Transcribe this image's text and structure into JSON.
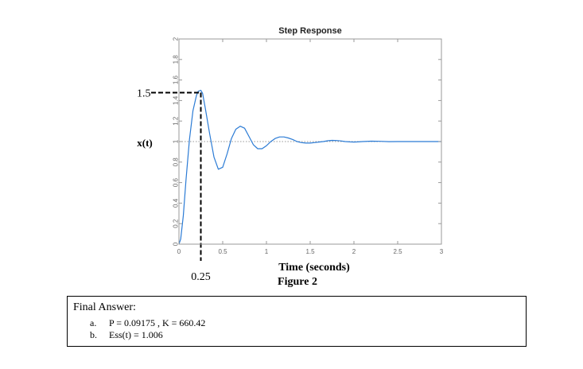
{
  "chart_data": {
    "type": "line",
    "title": "Step Response",
    "xlabel": "Time (seconds)",
    "ylabel": "x(t)",
    "caption": "Figure 2",
    "xlim": [
      0,
      3
    ],
    "ylim": [
      0,
      2
    ],
    "x_ticks": [
      "0",
      "0.5",
      "1",
      "1.5",
      "2",
      "2.5",
      "3"
    ],
    "y_ticks": [
      "0",
      "0.2",
      "0.4",
      "0.6",
      "0.8",
      "1",
      "1.2",
      "1.4",
      "1.6",
      "1.8",
      "2"
    ],
    "grid": false,
    "steady_state_reference": 1,
    "series": [
      {
        "color": "#2b7bd5",
        "x": [
          0,
          0.02,
          0.05,
          0.08,
          0.12,
          0.16,
          0.2,
          0.22,
          0.25,
          0.27,
          0.3,
          0.35,
          0.4,
          0.45,
          0.5,
          0.55,
          0.6,
          0.65,
          0.7,
          0.75,
          0.8,
          0.85,
          0.9,
          0.95,
          1.0,
          1.05,
          1.1,
          1.15,
          1.2,
          1.25,
          1.3,
          1.35,
          1.4,
          1.45,
          1.5,
          1.55,
          1.6,
          1.65,
          1.7,
          1.75,
          1.8,
          1.85,
          1.9,
          1.95,
          2.0,
          2.05,
          2.1,
          2.2,
          2.3,
          2.4,
          2.5,
          2.6,
          2.7,
          2.8,
          2.9,
          3.0
        ],
        "y": [
          0,
          0.05,
          0.28,
          0.62,
          1.02,
          1.3,
          1.45,
          1.49,
          1.5,
          1.47,
          1.33,
          1.08,
          0.85,
          0.73,
          0.75,
          0.88,
          1.03,
          1.12,
          1.15,
          1.13,
          1.05,
          0.97,
          0.93,
          0.93,
          0.96,
          1.0,
          1.03,
          1.045,
          1.045,
          1.035,
          1.02,
          1.0,
          0.99,
          0.985,
          0.985,
          0.99,
          0.995,
          1.0,
          1.008,
          1.012,
          1.01,
          1.006,
          1.0,
          0.997,
          0.995,
          0.997,
          1.0,
          1.004,
          1.002,
          0.999,
          1.0,
          1.0,
          1.0,
          1.0,
          1.0,
          1.0
        ]
      }
    ],
    "annotations": [
      {
        "label": "1.5",
        "x": 0.25,
        "y": 1.5
      },
      {
        "label": "0.25",
        "x": 0.25,
        "y": 1.5
      }
    ]
  },
  "answers": {
    "heading": "Final Answer:",
    "items": [
      {
        "marker": "a.",
        "text": "P = 0.09175 , K = 660.42"
      },
      {
        "marker": "b.",
        "text": "Ess(t) = 1.006"
      }
    ]
  }
}
